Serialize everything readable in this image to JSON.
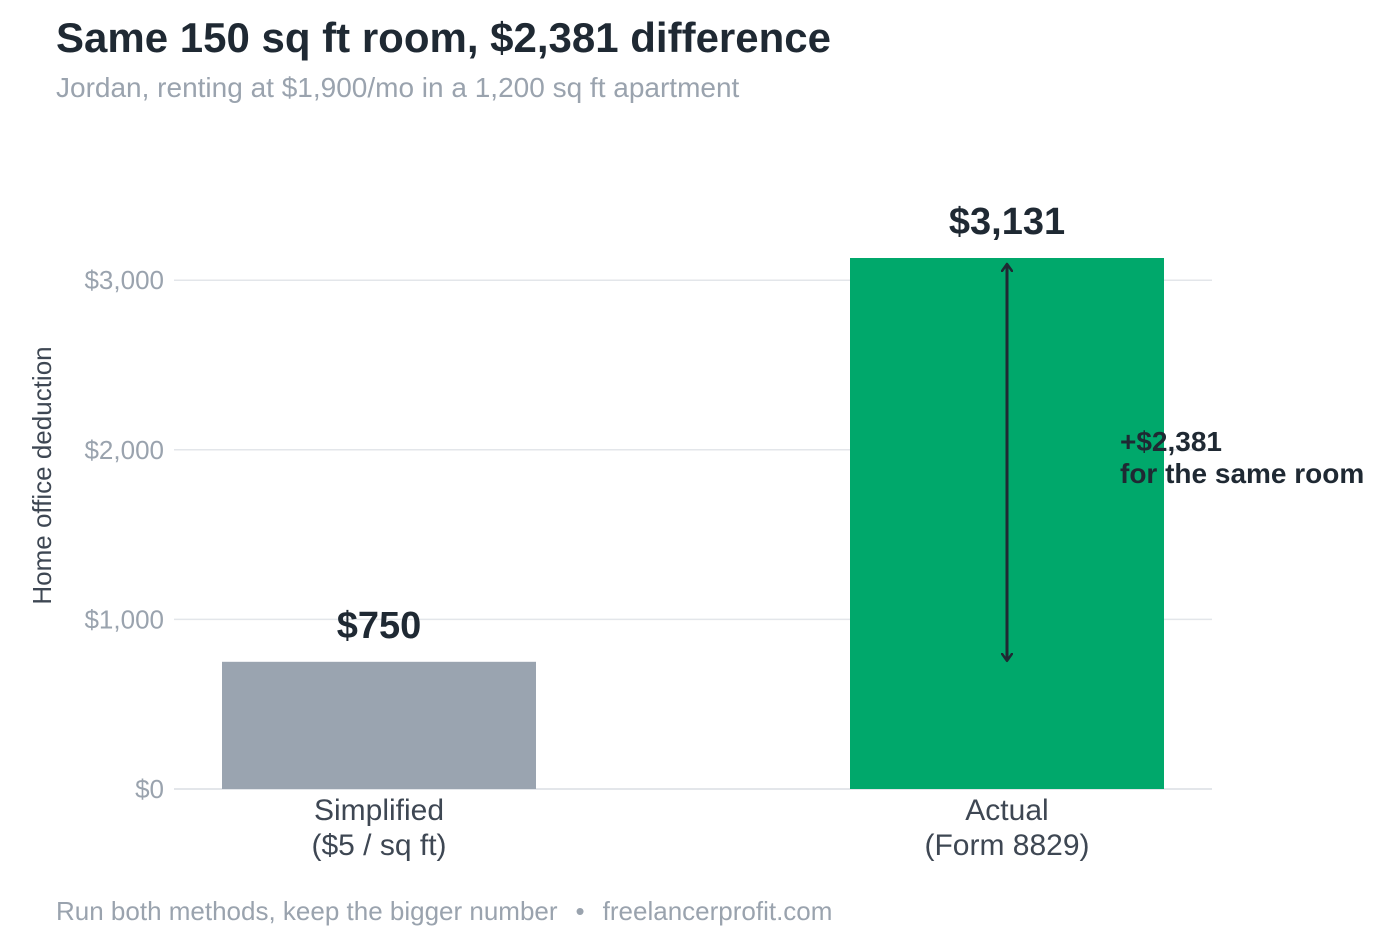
{
  "title": "Same 150 sq ft room, $2,381 difference",
  "subtitle": "Jordan, renting at $1,900/mo in a 1,200 sq ft apartment",
  "footer": {
    "note": "Run both methods, keep the bigger number",
    "separator": "•",
    "site": "freelancerprofit.com"
  },
  "colors": {
    "simplified_bar": "#9aa4b0",
    "actual_bar": "#00a86b",
    "text_dark": "#1f2933",
    "text_muted": "#9aa3ae",
    "grid": "#e3e6ea"
  },
  "chart_data": {
    "type": "bar",
    "categories": [
      [
        "Simplified",
        "($5 / sq ft)"
      ],
      [
        "Actual",
        "(Form 8829)"
      ]
    ],
    "values": [
      750,
      3131
    ],
    "value_labels": [
      "$750",
      "$3,131"
    ],
    "ylabel": "Home office deduction",
    "ylim": [
      0,
      3131
    ],
    "yticks": [
      0,
      1000,
      2000,
      3000
    ],
    "ytick_labels": [
      "$0",
      "$1,000",
      "$2,000",
      "$3,000"
    ],
    "grid": true,
    "annotation": {
      "from": 750,
      "to": 3131,
      "lines": [
        "+$2,381",
        "for the same room"
      ]
    }
  }
}
